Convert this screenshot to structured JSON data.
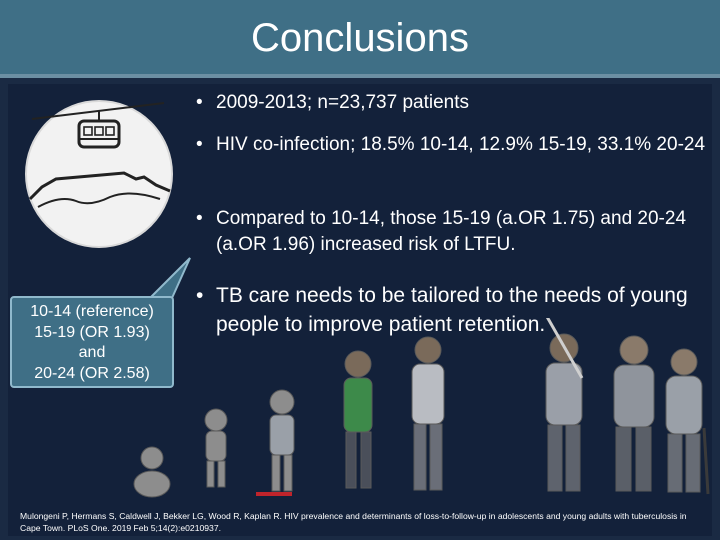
{
  "slide": {
    "title": "Conclusions",
    "bullets": [
      "2009-2013; n=23,737 patients",
      "HIV co-infection; 18.5% 10-14, 12.9% 15-19, 33.1% 20-24",
      "Compared to 10-14, those 15-19 (a.OR 1.75) and 20-24 (a.OR 1.96) increased risk of LTFU.",
      "TB care needs to be tailored to the needs of young people to improve patient retention."
    ],
    "callout_lines": [
      "10-14 (reference)",
      "15-19 (OR 1.93)",
      "and",
      "20-24 (OR 2.58)"
    ],
    "reference": "Mulongeni P, Hermans S, Caldwell J, Bekker LG, Wood R, Kaplan R. HIV prevalence and determinants of loss-to-follow-up in adolescents and young adults with tuberculosis in Cape Town. PLoS One. 2019 Feb 5;14(2):e0210937.",
    "logo_icon": "cable-car-mountain-icon",
    "illustration_icon": "age-progression-people-icon",
    "colors": {
      "title_bar": "#3f6f86",
      "background": "#1a2a43",
      "callout_fill": "#3f6f86",
      "callout_border": "#90b9cc",
      "accent_red": "#c0242b",
      "text": "#ffffff"
    }
  }
}
